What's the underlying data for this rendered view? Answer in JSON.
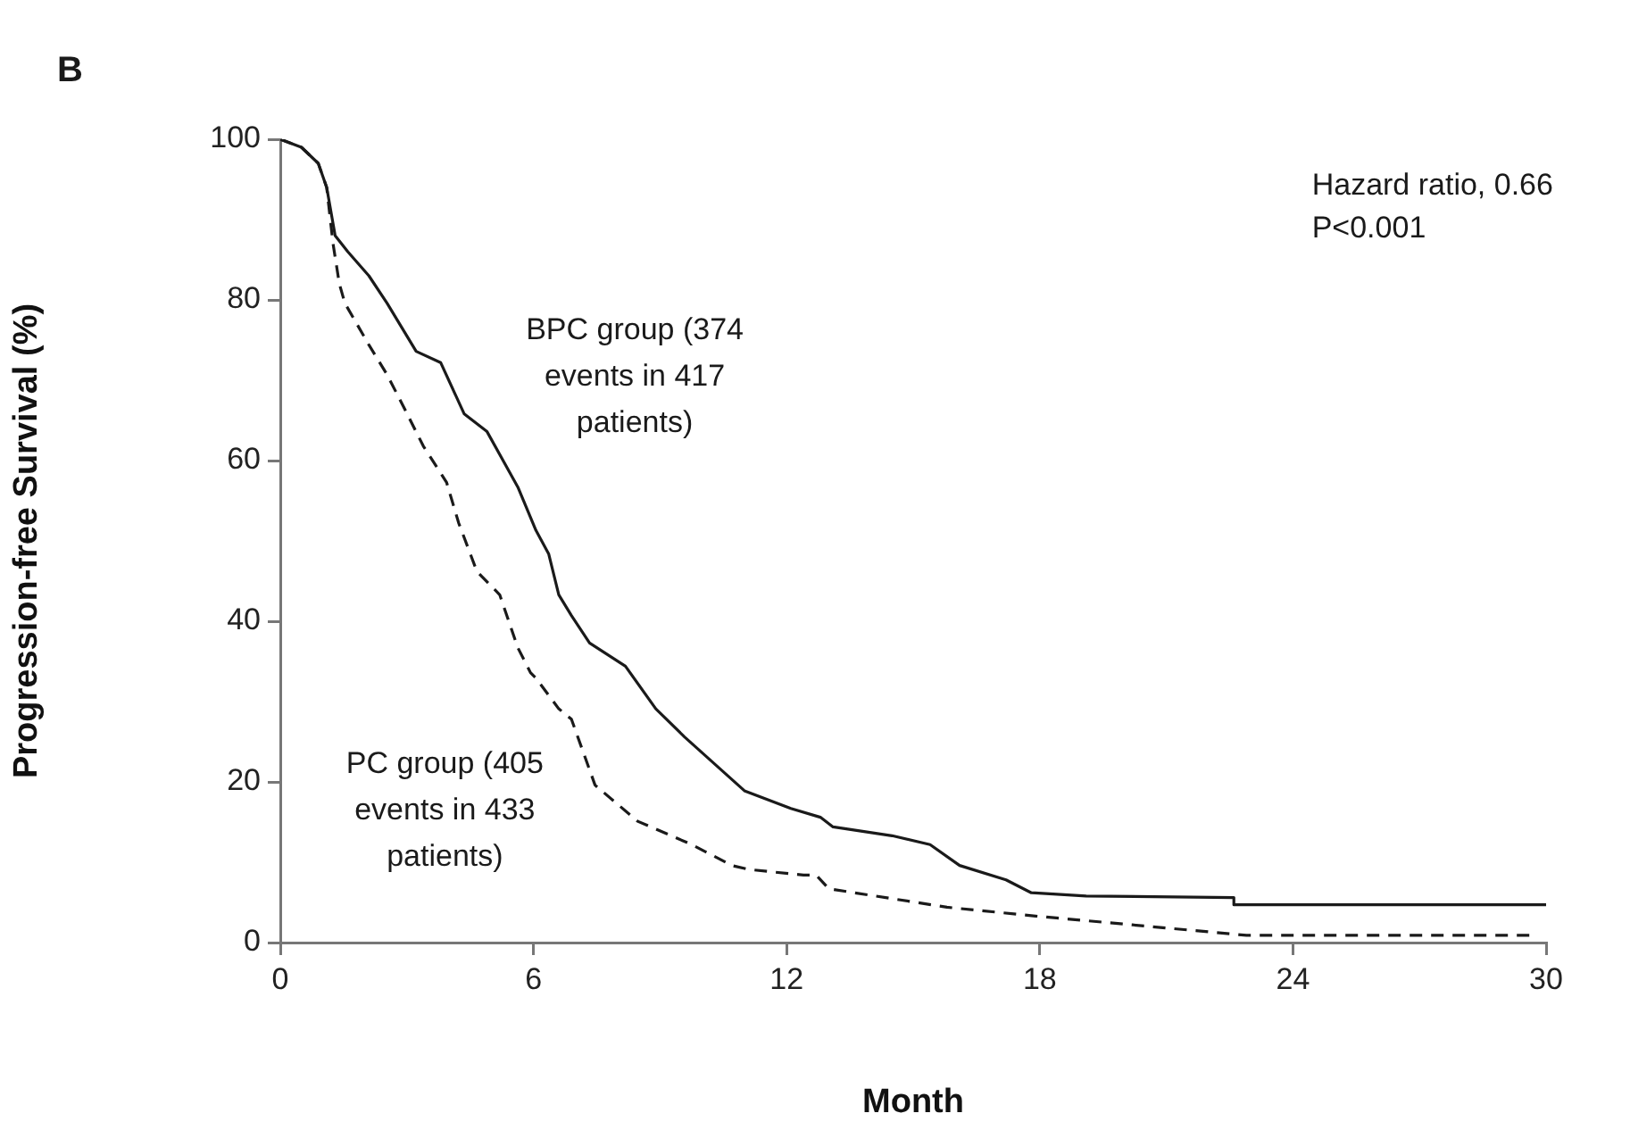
{
  "chart_data": {
    "type": "line",
    "title": "B",
    "xlabel": "Month",
    "ylabel": "Progression-free Survival (%)",
    "xlim": [
      0,
      30
    ],
    "xticks": [
      0,
      6,
      12,
      18,
      24,
      30
    ],
    "ylim": [
      0,
      100
    ],
    "yticks": [
      0,
      20,
      40,
      60,
      80,
      100
    ],
    "grid": false,
    "legend": false,
    "marker": "none",
    "annotations": [
      "Hazard ratio, 0.66",
      "P<0.001"
    ],
    "series": [
      {
        "name": "BPC group (374 events in 417 patients)",
        "color": "#1a1a1a",
        "line_style": "solid",
        "x": [
          0,
          0.5,
          0.9,
          1.1,
          1.3,
          1.6,
          2.1,
          2.53,
          3.22,
          3.8,
          4.36,
          4.9,
          5.63,
          6.06,
          6.36,
          6.6,
          6.9,
          7.33,
          8.18,
          8.9,
          9.58,
          11.0,
          12.1,
          12.8,
          13.1,
          14.5,
          15.4,
          16.1,
          17.2,
          17.8,
          19.1,
          22.6,
          22.6,
          30
        ],
        "values": [
          100,
          99,
          97,
          94,
          88,
          86,
          83,
          79.6,
          73.6,
          72.2,
          65.8,
          63.6,
          56.7,
          51.3,
          48.4,
          43.3,
          40.7,
          37.3,
          34.4,
          29.1,
          25.6,
          18.9,
          16.7,
          15.6,
          14.4,
          13.3,
          12.2,
          9.6,
          7.8,
          6.2,
          5.8,
          5.6,
          4.7,
          4.7
        ]
      },
      {
        "name": "PC group (405 events in 433 patients)",
        "color": "#1a1a1a",
        "line_style": "dashed",
        "x": [
          0,
          0.5,
          0.9,
          1.1,
          1.25,
          1.4,
          1.53,
          2.1,
          2.53,
          2.97,
          3.39,
          3.94,
          4.23,
          4.66,
          5.2,
          5.63,
          5.93,
          6.06,
          6.6,
          6.9,
          7.46,
          8.47,
          9.75,
          10.7,
          11.1,
          12.4,
          12.7,
          13.0,
          15.8,
          17.9,
          20.2,
          22.9,
          29.7
        ],
        "values": [
          100,
          99,
          97,
          94,
          87,
          82,
          79.6,
          74.4,
          70.7,
          66.2,
          61.8,
          57.3,
          52.2,
          46.2,
          43.3,
          36.7,
          33.6,
          32.9,
          29.1,
          27.8,
          19.6,
          15.1,
          12.2,
          9.6,
          9.1,
          8.4,
          8.4,
          6.7,
          4.4,
          3.3,
          2.2,
          0.9,
          0.9
        ]
      }
    ]
  }
}
